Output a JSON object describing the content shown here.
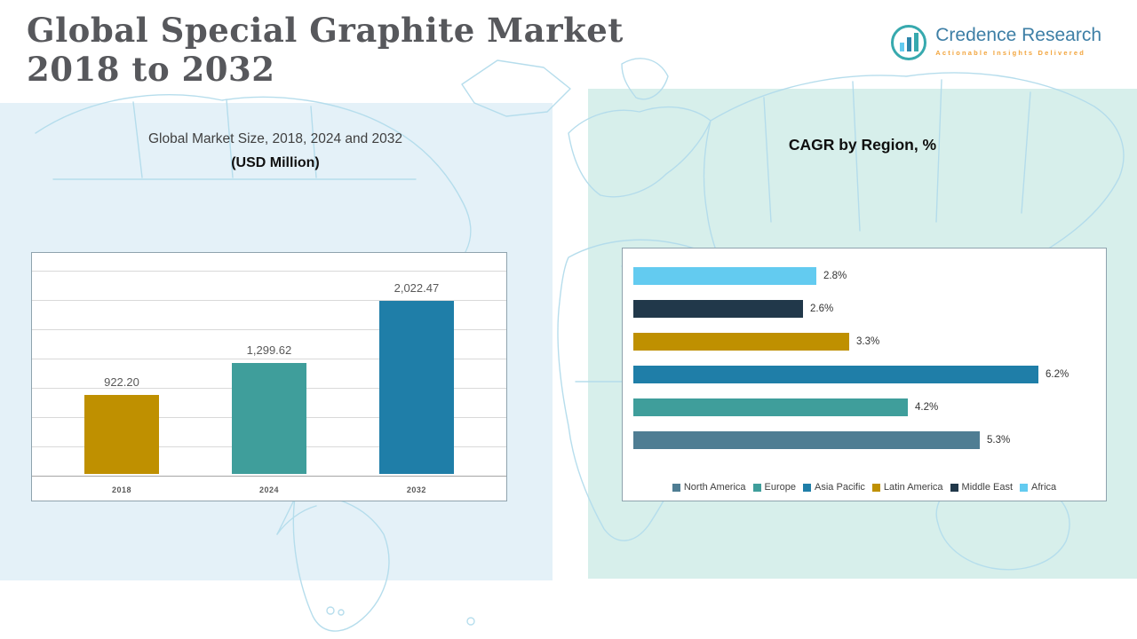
{
  "header": {
    "title_line1": "Global Special Graphite Market",
    "title_line2": "2018 to 2032"
  },
  "logo": {
    "brand": "Credence Research",
    "tagline": "Actionable Insights Delivered"
  },
  "left_panel": {
    "subtitle_line1": "Global Market Size, 2018, 2024 and 2032",
    "subtitle_line2": "(USD Million)"
  },
  "right_panel": {
    "title": "CAGR by Region, %"
  },
  "chart_data": [
    {
      "type": "bar",
      "title": "Global Market Size, 2018, 2024 and 2032 (USD Million)",
      "categories": [
        "2018",
        "2024",
        "2032"
      ],
      "values": [
        922.2,
        1299.62,
        2022.47
      ],
      "value_labels": [
        "922.20",
        "1,299.62",
        "2,022.47"
      ],
      "bar_colors": [
        "#BF9000",
        "#3F9E9B",
        "#1F7EA8"
      ],
      "ylim": [
        0,
        2400
      ],
      "grid": true,
      "legend_position": "none"
    },
    {
      "type": "bar",
      "orientation": "horizontal",
      "title": "CAGR by Region, %",
      "categories": [
        "Africa",
        "Middle East",
        "Latin America",
        "Asia Pacific",
        "Europe",
        "North America"
      ],
      "values": [
        2.8,
        2.6,
        3.3,
        6.2,
        4.2,
        5.3
      ],
      "value_labels": [
        "2.8%",
        "2.6%",
        "3.3%",
        "6.2%",
        "4.2%",
        "5.3%"
      ],
      "bar_colors": [
        "#63CBF0",
        "#21384A",
        "#BF9000",
        "#1F7EA8",
        "#3F9E9B",
        "#4F7D93"
      ],
      "xlim": [
        0,
        6.8
      ],
      "grid": false,
      "legend_position": "bottom",
      "legend": [
        {
          "label": "North America",
          "color": "#4F7D93"
        },
        {
          "label": "Europe",
          "color": "#3F9E9B"
        },
        {
          "label": "Asia Pacific",
          "color": "#1F7EA8"
        },
        {
          "label": "Latin America",
          "color": "#BF9000"
        },
        {
          "label": "Middle East",
          "color": "#21384A"
        },
        {
          "label": "Africa",
          "color": "#63CBF0"
        }
      ]
    }
  ]
}
